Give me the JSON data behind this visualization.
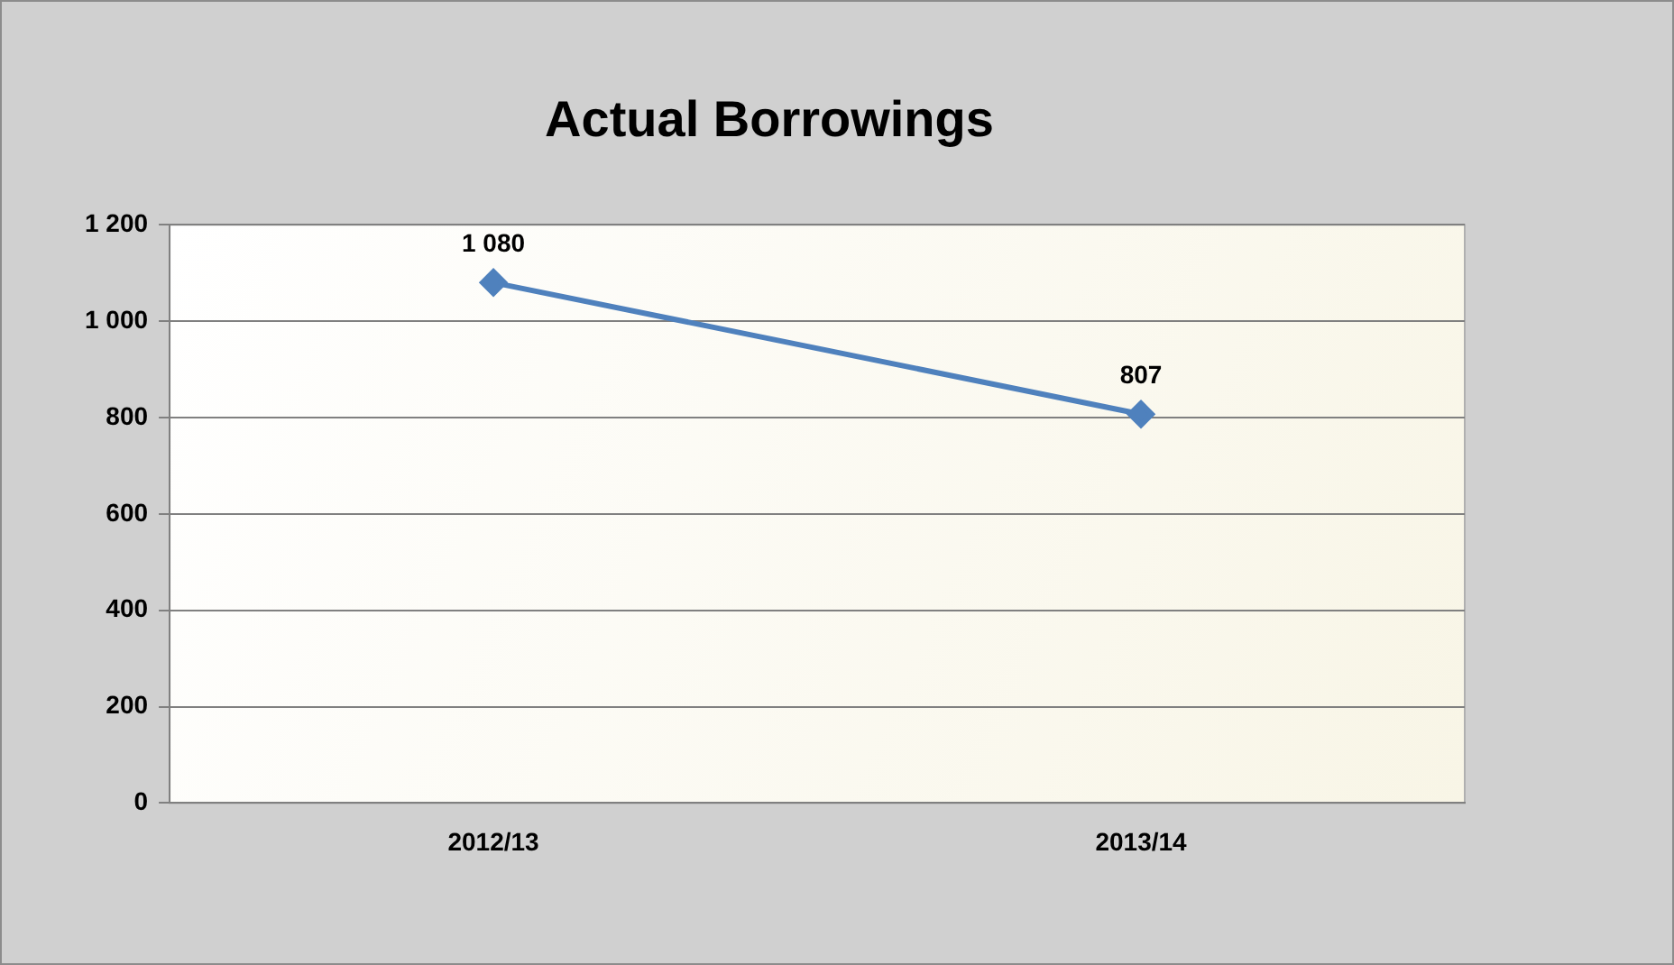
{
  "chart_data": {
    "type": "line",
    "title": "Actual Borrowings",
    "categories": [
      "2012/13",
      "2013/14"
    ],
    "series": [
      {
        "color": "#4f81bd",
        "values": [
          1080,
          807
        ],
        "value_labels": [
          "1 080",
          "807"
        ]
      }
    ],
    "ylim": [
      0,
      1200
    ],
    "yticks": [
      0,
      200,
      400,
      600,
      800,
      {
        "value": 1000,
        "label": "1 000"
      },
      {
        "value": 1200,
        "label": "1 200"
      }
    ],
    "grid": "y",
    "legend": false,
    "marker": "diamond",
    "line_style": "solid"
  }
}
